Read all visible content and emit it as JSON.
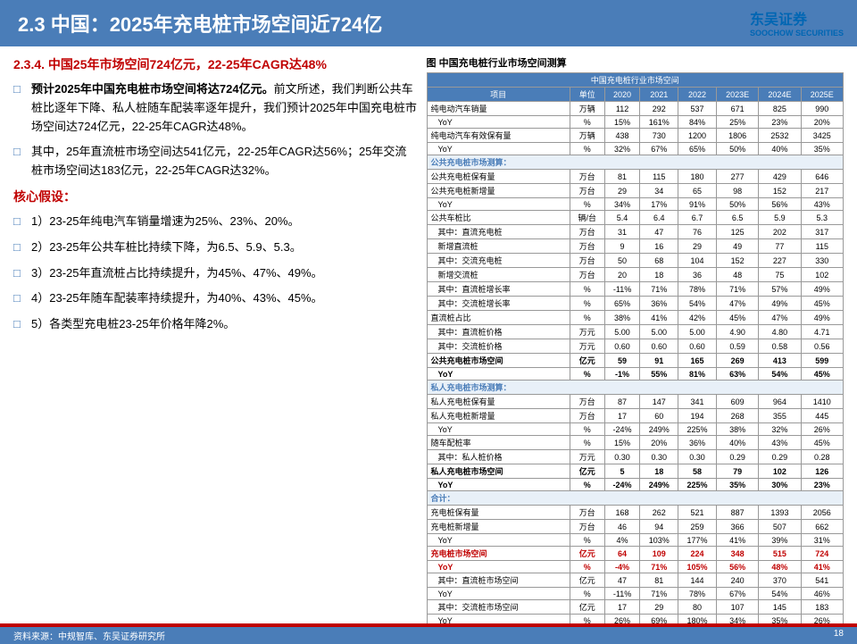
{
  "header": {
    "title": "2.3 中国：2025年充电桩市场空间近724亿"
  },
  "logo": {
    "brand": "东吴证券",
    "sub": "SOOCHOW SECURITIES"
  },
  "left": {
    "title1": "2.3.4. 中国25年市场空间724亿元，22-25年CAGR达48%",
    "b1lead": "预计2025年中国充电桩市场空间将达724亿元。",
    "b1rest": "前文所述，我们判断公共车桩比逐年下降、私人桩随车配装率逐年提升，我们预计2025年中国充电桩市场空间达724亿元，22-25年CAGR达48%。",
    "b2": "其中，25年直流桩市场空间达541亿元，22-25年CAGR达56%；25年交流桩市场空间达183亿元，22-25年CAGR达32%。",
    "title2": "核心假设：",
    "a1": "1）23-25年纯电汽车销量增速为25%、23%、20%。",
    "a2": "2）23-25年公共车桩比持续下降，为6.5、5.9、5.3。",
    "a3": "3）23-25年直流桩占比持续提升，为45%、47%、49%。",
    "a4": "4）23-25年随车配装率持续提升，为40%、43%、45%。",
    "a5": "5）各类型充电桩23-25年价格年降2%。"
  },
  "right": {
    "figtitle": "图 中国充电桩行业市场空间测算",
    "thead": {
      "h0": "中国充电桩行业市场空间",
      "c0": "项目",
      "c1": "单位",
      "y20": "2020",
      "y21": "2021",
      "y22": "2022",
      "y23": "2023E",
      "y24": "2024E",
      "y25": "2025E"
    },
    "rows": [
      {
        "l": "纯电动汽车销量",
        "u": "万辆",
        "d": [
          "112",
          "292",
          "537",
          "671",
          "825",
          "990"
        ]
      },
      {
        "l": "YoY",
        "u": "%",
        "d": [
          "15%",
          "161%",
          "84%",
          "25%",
          "23%",
          "20%"
        ],
        "sub": 1
      },
      {
        "l": "纯电动汽车有效保有量",
        "u": "万辆",
        "d": [
          "438",
          "730",
          "1200",
          "1806",
          "2532",
          "3425"
        ]
      },
      {
        "l": "YoY",
        "u": "%",
        "d": [
          "32%",
          "67%",
          "65%",
          "50%",
          "40%",
          "35%"
        ],
        "sub": 1
      },
      {
        "l": "公共充电桩市场测算：",
        "sec": 1
      },
      {
        "l": "公共充电桩保有量",
        "u": "万台",
        "d": [
          "81",
          "115",
          "180",
          "277",
          "429",
          "646"
        ]
      },
      {
        "l": "公共充电桩新增量",
        "u": "万台",
        "d": [
          "29",
          "34",
          "65",
          "98",
          "152",
          "217"
        ]
      },
      {
        "l": "YoY",
        "u": "%",
        "d": [
          "34%",
          "17%",
          "91%",
          "50%",
          "56%",
          "43%"
        ],
        "sub": 1
      },
      {
        "l": "公共车桩比",
        "u": "辆/台",
        "d": [
          "5.4",
          "6.4",
          "6.7",
          "6.5",
          "5.9",
          "5.3"
        ]
      },
      {
        "l": "其中：直流充电桩",
        "u": "万台",
        "d": [
          "31",
          "47",
          "76",
          "125",
          "202",
          "317"
        ],
        "sub": 1
      },
      {
        "l": "新增直流桩",
        "u": "万台",
        "d": [
          "9",
          "16",
          "29",
          "49",
          "77",
          "115"
        ],
        "sub": 1
      },
      {
        "l": "其中：交流充电桩",
        "u": "万台",
        "d": [
          "50",
          "68",
          "104",
          "152",
          "227",
          "330"
        ],
        "sub": 1
      },
      {
        "l": "新增交流桩",
        "u": "万台",
        "d": [
          "20",
          "18",
          "36",
          "48",
          "75",
          "102"
        ],
        "sub": 1
      },
      {
        "l": "其中：直流桩增长率",
        "u": "%",
        "d": [
          "-11%",
          "71%",
          "78%",
          "71%",
          "57%",
          "49%"
        ],
        "sub": 1
      },
      {
        "l": "其中：交流桩增长率",
        "u": "%",
        "d": [
          "65%",
          "36%",
          "54%",
          "47%",
          "49%",
          "45%"
        ],
        "sub": 1
      },
      {
        "l": "直流桩占比",
        "u": "%",
        "d": [
          "38%",
          "41%",
          "42%",
          "45%",
          "47%",
          "49%"
        ]
      },
      {
        "l": "其中：直流桩价格",
        "u": "万元",
        "d": [
          "5.00",
          "5.00",
          "5.00",
          "4.90",
          "4.80",
          "4.71"
        ],
        "sub": 1
      },
      {
        "l": "其中：交流桩价格",
        "u": "万元",
        "d": [
          "0.60",
          "0.60",
          "0.60",
          "0.59",
          "0.58",
          "0.56"
        ],
        "sub": 1
      },
      {
        "l": "公共充电桩市场空间",
        "u": "亿元",
        "d": [
          "59",
          "91",
          "165",
          "269",
          "413",
          "599"
        ],
        "bold": 1
      },
      {
        "l": "YoY",
        "u": "%",
        "d": [
          "-1%",
          "55%",
          "81%",
          "63%",
          "54%",
          "45%"
        ],
        "sub": 1,
        "bold": 1
      },
      {
        "l": "私人充电桩市场测算：",
        "sec": 1
      },
      {
        "l": "私人充电桩保有量",
        "u": "万台",
        "d": [
          "87",
          "147",
          "341",
          "609",
          "964",
          "1410"
        ]
      },
      {
        "l": "私人充电桩新增量",
        "u": "万台",
        "d": [
          "17",
          "60",
          "194",
          "268",
          "355",
          "445"
        ]
      },
      {
        "l": "YoY",
        "u": "%",
        "d": [
          "-24%",
          "249%",
          "225%",
          "38%",
          "32%",
          "26%"
        ],
        "sub": 1
      },
      {
        "l": "随车配桩率",
        "u": "%",
        "d": [
          "15%",
          "20%",
          "36%",
          "40%",
          "43%",
          "45%"
        ]
      },
      {
        "l": "其中：私人桩价格",
        "u": "万元",
        "d": [
          "0.30",
          "0.30",
          "0.30",
          "0.29",
          "0.29",
          "0.28"
        ],
        "sub": 1
      },
      {
        "l": "私人充电桩市场空间",
        "u": "亿元",
        "d": [
          "5",
          "18",
          "58",
          "79",
          "102",
          "126"
        ],
        "bold": 1
      },
      {
        "l": "YoY",
        "u": "%",
        "d": [
          "-24%",
          "249%",
          "225%",
          "35%",
          "30%",
          "23%"
        ],
        "sub": 1,
        "bold": 1
      },
      {
        "l": "合计：",
        "sec": 1
      },
      {
        "l": "充电桩保有量",
        "u": "万台",
        "d": [
          "168",
          "262",
          "521",
          "887",
          "1393",
          "2056"
        ]
      },
      {
        "l": "充电桩新增量",
        "u": "万台",
        "d": [
          "46",
          "94",
          "259",
          "366",
          "507",
          "662"
        ]
      },
      {
        "l": "YoY",
        "u": "%",
        "d": [
          "4%",
          "103%",
          "177%",
          "41%",
          "39%",
          "31%"
        ],
        "sub": 1
      },
      {
        "l": "充电桩市场空间",
        "u": "亿元",
        "d": [
          "64",
          "109",
          "224",
          "348",
          "515",
          "724"
        ],
        "red": 1
      },
      {
        "l": "YoY",
        "u": "%",
        "d": [
          "-4%",
          "71%",
          "105%",
          "56%",
          "48%",
          "41%"
        ],
        "sub": 1,
        "red": 1
      },
      {
        "l": "其中：直流桩市场空间",
        "u": "亿元",
        "d": [
          "47",
          "81",
          "144",
          "240",
          "370",
          "541"
        ],
        "sub": 1
      },
      {
        "l": "YoY",
        "u": "%",
        "d": [
          "-11%",
          "71%",
          "78%",
          "67%",
          "54%",
          "46%"
        ],
        "sub": 1
      },
      {
        "l": "其中：交流桩市场空间",
        "u": "亿元",
        "d": [
          "17",
          "29",
          "80",
          "107",
          "145",
          "183"
        ],
        "sub": 1
      },
      {
        "l": "YoY",
        "u": "%",
        "d": [
          "26%",
          "69%",
          "180%",
          "34%",
          "35%",
          "26%"
        ],
        "sub": 1
      }
    ]
  },
  "footer": {
    "source": "资料来源：中规智库、东吴证券研究所",
    "page": "18"
  }
}
